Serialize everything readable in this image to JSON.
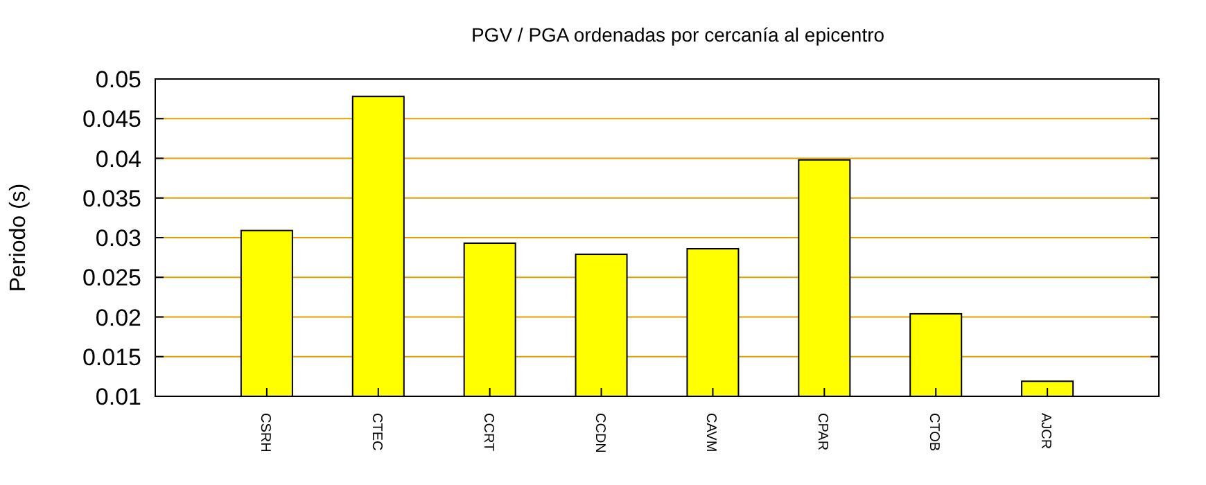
{
  "chart_data": {
    "type": "bar",
    "title": "PGV / PGA ordenadas por cercanía al epicentro",
    "ylabel": "Periodo (s)",
    "categories": [
      "CSRH",
      "CTEC",
      "CCRT",
      "CCDN",
      "CAVM",
      "CPAR",
      "CTOB",
      "AJCR"
    ],
    "values": [
      0.0309,
      0.0478,
      0.0293,
      0.0279,
      0.0286,
      0.0398,
      0.0204,
      0.0119
    ],
    "color": "#ffff00",
    "ylim": [
      0.01,
      0.05
    ],
    "yticks": [
      0.01,
      0.015,
      0.02,
      0.025,
      0.03,
      0.035,
      0.04,
      0.045,
      0.05
    ],
    "grid": "y"
  }
}
